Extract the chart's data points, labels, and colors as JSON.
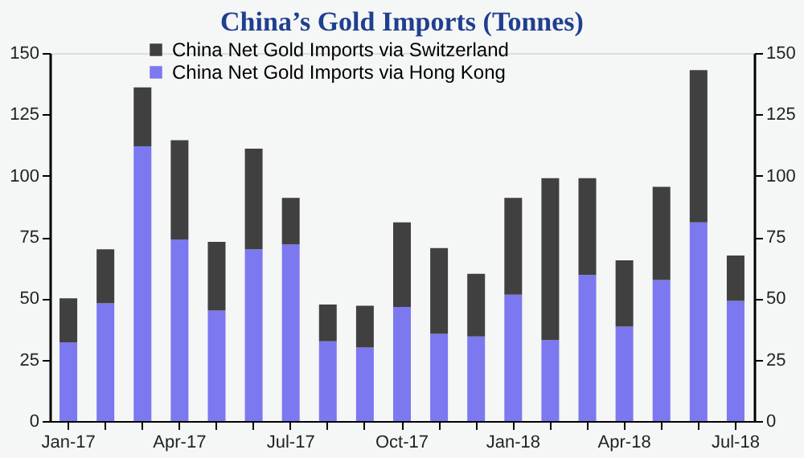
{
  "chart_data": {
    "type": "bar",
    "title": "China’s Gold Imports (Tonnes)",
    "stacked": true,
    "categories": [
      "Jan-17",
      null,
      null,
      "Apr-17",
      null,
      null,
      "Jul-17",
      null,
      null,
      "Oct-17",
      null,
      null,
      "Jan-18",
      null,
      null,
      "Apr-18",
      null,
      null,
      "Jul-18"
    ],
    "series": [
      {
        "name": "China Net Gold Imports via Hong Kong",
        "color": "#7b78f0",
        "values": [
          32,
          48,
          112,
          74,
          45,
          70,
          72,
          32.5,
          30,
          46.5,
          35.5,
          34.5,
          51.5,
          33,
          59.5,
          38.5,
          57.5,
          81,
          49
        ]
      },
      {
        "name": "China Net Gold Imports via Switzerland",
        "color": "#404040",
        "values": [
          18,
          22,
          24,
          40.5,
          28,
          41,
          19,
          15,
          17,
          34.5,
          35,
          25.5,
          39.5,
          66,
          39.5,
          27,
          38,
          62,
          18.5
        ]
      }
    ],
    "ylim": [
      0,
      150
    ],
    "yticks": [
      0,
      25,
      50,
      75,
      100,
      125,
      150
    ],
    "y2lim": [
      0,
      150
    ],
    "y2ticks": [
      0,
      25,
      50,
      75,
      100,
      125,
      150
    ],
    "grid": false,
    "legend": "top"
  }
}
